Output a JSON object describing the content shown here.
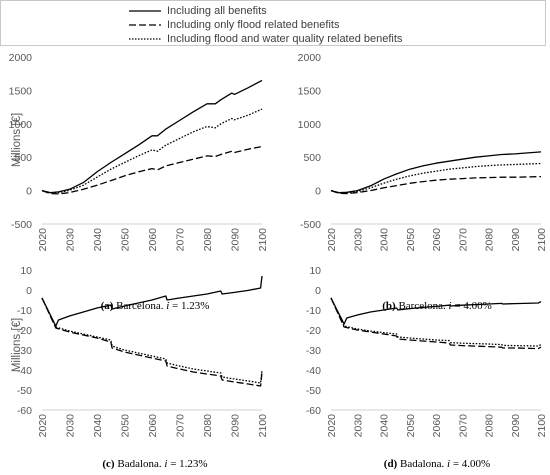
{
  "legend": {
    "items": [
      {
        "label": "Including all benefits",
        "dash": "solid"
      },
      {
        "label": "Including only flood related benefits",
        "dash": "long-dash"
      },
      {
        "label": "Including flood and water quality related benefits",
        "dash": "dotted"
      }
    ]
  },
  "chart_data": [
    {
      "type": "line",
      "caption_bold": "(a)",
      "caption_text": " Barcelona. ",
      "caption_italic": "i",
      "caption_rest": " = 1.23%",
      "ylabel": "Millions [€]",
      "xlim": [
        2020,
        2100
      ],
      "ylim": [
        -500,
        2000
      ],
      "xticks": [
        "2020",
        "2030",
        "2040",
        "2050",
        "2060",
        "2070",
        "2080",
        "2090",
        "2100"
      ],
      "yticks": [
        "-500",
        "0",
        "500",
        "1000",
        "1500",
        "2000"
      ],
      "series": [
        {
          "dash": "solid",
          "x": [
            2020,
            2023,
            2026,
            2030,
            2035,
            2040,
            2045,
            2050,
            2055,
            2060,
            2062,
            2065,
            2070,
            2075,
            2080,
            2083,
            2085,
            2089,
            2090,
            2095,
            2100
          ],
          "y": [
            0,
            -30,
            -20,
            20,
            120,
            280,
            420,
            550,
            680,
            820,
            820,
            920,
            1050,
            1180,
            1300,
            1300,
            1360,
            1460,
            1440,
            1540,
            1650
          ]
        },
        {
          "dash": "long-dash",
          "x": [
            2020,
            2023,
            2026,
            2030,
            2035,
            2040,
            2045,
            2050,
            2055,
            2060,
            2062,
            2065,
            2070,
            2075,
            2080,
            2083,
            2085,
            2089,
            2090,
            2095,
            2100
          ],
          "y": [
            0,
            -45,
            -50,
            -30,
            20,
            80,
            150,
            220,
            280,
            330,
            310,
            370,
            420,
            470,
            520,
            510,
            540,
            590,
            570,
            620,
            660
          ]
        },
        {
          "dash": "dotted",
          "x": [
            2020,
            2023,
            2026,
            2030,
            2035,
            2040,
            2045,
            2050,
            2055,
            2060,
            2062,
            2065,
            2070,
            2075,
            2080,
            2083,
            2085,
            2089,
            2090,
            2095,
            2100
          ],
          "y": [
            0,
            -35,
            -30,
            5,
            80,
            200,
            320,
            420,
            520,
            610,
            590,
            680,
            780,
            880,
            960,
            940,
            1000,
            1080,
            1060,
            1130,
            1220
          ]
        }
      ]
    },
    {
      "type": "line",
      "caption_bold": "(b)",
      "caption_text": " Barcelona. ",
      "caption_italic": "i",
      "caption_rest": " = 4.00%",
      "ylabel": "",
      "xlim": [
        2020,
        2100
      ],
      "ylim": [
        -500,
        2000
      ],
      "xticks": [
        "2020",
        "2030",
        "2040",
        "2050",
        "2060",
        "2070",
        "2080",
        "2090",
        "2100"
      ],
      "yticks": [
        "-500",
        "0",
        "500",
        "1000",
        "1500",
        "2000"
      ],
      "series": [
        {
          "dash": "solid",
          "x": [
            2020,
            2023,
            2026,
            2030,
            2035,
            2040,
            2045,
            2050,
            2055,
            2060,
            2065,
            2070,
            2075,
            2080,
            2085,
            2090,
            2095,
            2100
          ],
          "y": [
            0,
            -30,
            -25,
            0,
            70,
            170,
            250,
            320,
            370,
            410,
            440,
            470,
            500,
            520,
            540,
            550,
            565,
            580
          ]
        },
        {
          "dash": "long-dash",
          "x": [
            2020,
            2023,
            2026,
            2030,
            2035,
            2040,
            2045,
            2050,
            2055,
            2060,
            2065,
            2070,
            2075,
            2080,
            2085,
            2090,
            2095,
            2100
          ],
          "y": [
            0,
            -40,
            -45,
            -30,
            0,
            40,
            75,
            110,
            135,
            155,
            170,
            180,
            190,
            195,
            200,
            200,
            205,
            210
          ]
        },
        {
          "dash": "dotted",
          "x": [
            2020,
            2023,
            2026,
            2030,
            2035,
            2040,
            2045,
            2050,
            2055,
            2060,
            2065,
            2070,
            2075,
            2080,
            2085,
            2090,
            2095,
            2100
          ],
          "y": [
            0,
            -35,
            -35,
            -15,
            40,
            110,
            170,
            220,
            260,
            290,
            320,
            340,
            360,
            375,
            385,
            390,
            398,
            405
          ]
        }
      ]
    },
    {
      "type": "line",
      "caption_bold": "(c)",
      "caption_text": " Badalona. ",
      "caption_italic": "i",
      "caption_rest": " = 1.23%",
      "ylabel": "Millions [€]",
      "xlim": [
        2020,
        2100
      ],
      "ylim": [
        -60,
        10
      ],
      "xticks": [
        "2020",
        "2030",
        "2040",
        "2050",
        "2060",
        "2070",
        "2080",
        "2090",
        "2100"
      ],
      "yticks": [
        "-60",
        "-50",
        "-40",
        "-30",
        "-20",
        "-10",
        "0",
        "10"
      ],
      "series": [
        {
          "dash": "solid",
          "x": [
            2020,
            2025,
            2026,
            2030,
            2035,
            2040,
            2045,
            2045.5,
            2050,
            2055,
            2060,
            2065,
            2065.5,
            2070,
            2075,
            2080,
            2085,
            2085.5,
            2090,
            2095,
            2099.5,
            2100
          ],
          "y": [
            -4,
            -18,
            -15,
            -13,
            -11,
            -9,
            -7.5,
            -9.5,
            -8,
            -6.5,
            -5,
            -3,
            -5,
            -4,
            -3,
            -2,
            -0.5,
            -2,
            -1.2,
            -0.2,
            1,
            7
          ]
        },
        {
          "dash": "long-dash",
          "x": [
            2020,
            2025,
            2030,
            2035,
            2040,
            2045,
            2045.5,
            2050,
            2055,
            2060,
            2065,
            2065.5,
            2070,
            2075,
            2080,
            2085,
            2085.5,
            2090,
            2095,
            2099.5,
            2100
          ],
          "y": [
            -4,
            -19,
            -21,
            -22.5,
            -24,
            -26,
            -29,
            -31,
            -32.5,
            -34,
            -35.5,
            -38,
            -39.5,
            -41,
            -42,
            -43,
            -45,
            -46,
            -47,
            -48,
            -41
          ]
        },
        {
          "dash": "dotted",
          "x": [
            2020,
            2025,
            2030,
            2035,
            2040,
            2045,
            2045.5,
            2050,
            2055,
            2060,
            2065,
            2065.5,
            2070,
            2075,
            2080,
            2085,
            2085.5,
            2090,
            2095,
            2099.5,
            2100
          ],
          "y": [
            -4,
            -18.5,
            -20.5,
            -22,
            -23.5,
            -25,
            -28,
            -30,
            -31.5,
            -33,
            -34.5,
            -36.5,
            -38,
            -39.5,
            -40.5,
            -41.5,
            -43.5,
            -44.5,
            -45.5,
            -46.5,
            -40
          ]
        }
      ]
    },
    {
      "type": "line",
      "caption_bold": "(d)",
      "caption_text": " Badalona. ",
      "caption_italic": "i",
      "caption_rest": " = 4.00%",
      "ylabel": "",
      "xlim": [
        2020,
        2100
      ],
      "ylim": [
        -60,
        10
      ],
      "xticks": [
        "2020",
        "2030",
        "2040",
        "2050",
        "2060",
        "2070",
        "2080",
        "2090",
        "2100"
      ],
      "yticks": [
        "-60",
        "-50",
        "-40",
        "-30",
        "-20",
        "-10",
        "0",
        "10"
      ],
      "series": [
        {
          "dash": "solid",
          "x": [
            2020,
            2025,
            2026,
            2030,
            2035,
            2040,
            2045,
            2045.5,
            2050,
            2055,
            2060,
            2065,
            2065.5,
            2070,
            2080,
            2085,
            2085.5,
            2090,
            2099,
            2100
          ],
          "y": [
            -4,
            -17,
            -14,
            -12.5,
            -11,
            -10,
            -9,
            -10,
            -9.3,
            -8.7,
            -8.2,
            -7.6,
            -8,
            -7.6,
            -7,
            -6.7,
            -7,
            -6.8,
            -6.5,
            -5.8
          ]
        },
        {
          "dash": "long-dash",
          "x": [
            2020,
            2025,
            2030,
            2035,
            2040,
            2045,
            2045.5,
            2050,
            2055,
            2060,
            2065,
            2065.5,
            2070,
            2080,
            2085,
            2085.5,
            2090,
            2099,
            2100
          ],
          "y": [
            -4,
            -18.5,
            -20,
            -21,
            -22,
            -23,
            -24.5,
            -25,
            -25.5,
            -26,
            -26.5,
            -27.5,
            -27.8,
            -28.3,
            -28.6,
            -29,
            -29,
            -29.3,
            -28.5
          ]
        },
        {
          "dash": "dotted",
          "x": [
            2020,
            2025,
            2030,
            2035,
            2040,
            2045,
            2045.5,
            2050,
            2055,
            2060,
            2065,
            2065.5,
            2070,
            2080,
            2085,
            2085.5,
            2090,
            2099,
            2100
          ],
          "y": [
            -4,
            -18,
            -19.5,
            -20.5,
            -21.3,
            -22,
            -23.5,
            -24,
            -24.5,
            -25,
            -25.3,
            -26.3,
            -26.6,
            -27,
            -27.3,
            -27.7,
            -27.8,
            -28,
            -27.3
          ]
        }
      ]
    }
  ]
}
